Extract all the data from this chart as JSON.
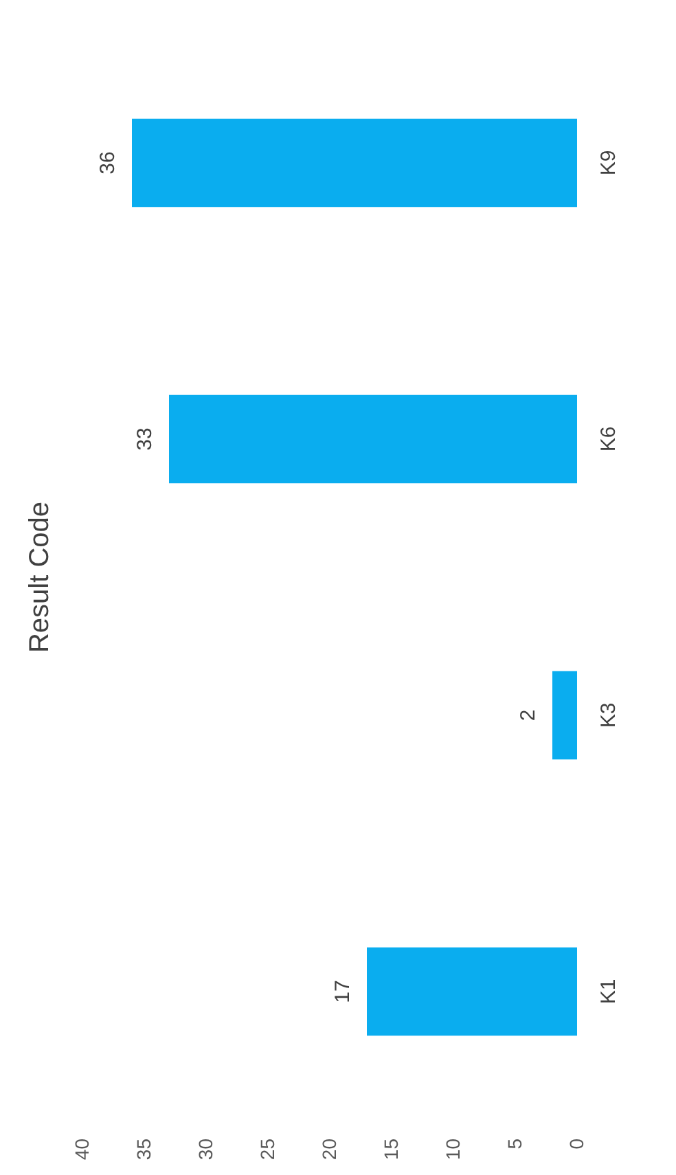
{
  "chart_data": {
    "type": "bar",
    "title": "Result Code",
    "orientation": "horizontal",
    "categories": [
      "K9",
      "K6",
      "K3",
      "K1"
    ],
    "values": [
      36,
      33,
      2,
      17
    ],
    "color": "#0aadef",
    "xlim": [
      40,
      0
    ],
    "xticks": [
      0,
      5,
      10,
      15,
      20,
      25,
      30,
      35,
      40
    ],
    "data_labels": true
  }
}
